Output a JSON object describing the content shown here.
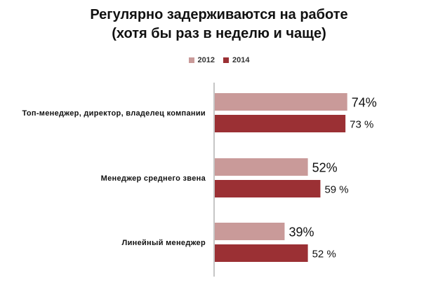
{
  "title": {
    "line1": "Регулярно задерживаются на работе",
    "line2": "(хотя бы раз в неделю и чаще)"
  },
  "colors": {
    "2012": "#c99a99",
    "2014": "#9b3034"
  },
  "chart_data": {
    "type": "bar",
    "orientation": "horizontal",
    "categories": [
      "Топ-менеджер, директор, владелец компании",
      "Менеджер среднего звена",
      "Линейный менеджер"
    ],
    "series": [
      {
        "name": "2012",
        "values": [
          74,
          52,
          39
        ],
        "labels": [
          "74%",
          "52%",
          "39%"
        ]
      },
      {
        "name": "2014",
        "values": [
          73,
          59,
          52
        ],
        "labels": [
          "73 %",
          "59 %",
          "52 %"
        ]
      }
    ],
    "xlim": [
      0,
      100
    ],
    "legend_position": "top",
    "grid": false
  }
}
